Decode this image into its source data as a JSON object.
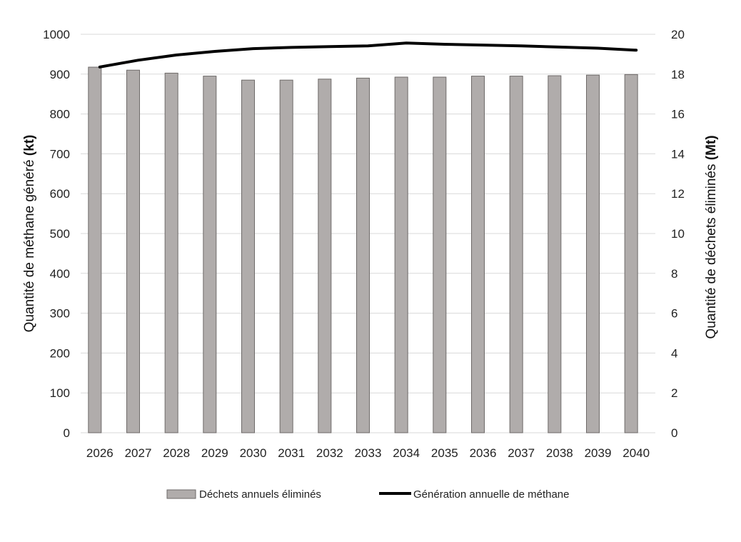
{
  "chart_data": {
    "type": "bar",
    "categories": [
      "2026",
      "2027",
      "2028",
      "2029",
      "2030",
      "2031",
      "2032",
      "2033",
      "2034",
      "2035",
      "2036",
      "2037",
      "2038",
      "2039",
      "2040"
    ],
    "series": [
      {
        "name": "Déchets annuels éliminés",
        "type": "bar",
        "axis": "right",
        "unit": "Mt",
        "values": [
          18.35,
          18.2,
          18.05,
          17.9,
          17.7,
          17.7,
          17.75,
          17.8,
          17.85,
          17.85,
          17.9,
          17.9,
          17.92,
          17.95,
          17.98
        ],
        "color": "#b0acab",
        "stroke": "#6e6a69"
      },
      {
        "name": "Génération annuelle de méthane",
        "type": "line",
        "axis": "left",
        "unit": "kt",
        "values": [
          918,
          935,
          948,
          957,
          964,
          967,
          969,
          971,
          978,
          975,
          973,
          971,
          968,
          965,
          960
        ],
        "color": "#000000"
      }
    ],
    "left_axis": {
      "label_prefix": "Quantité de méthane généré ",
      "label_unit": "(kt)",
      "ticks": [
        "0",
        "100",
        "200",
        "300",
        "400",
        "500",
        "600",
        "700",
        "800",
        "900",
        "1000"
      ],
      "ylim": [
        0,
        1000
      ]
    },
    "right_axis": {
      "label_prefix": "Quantité de déchets éliminés ",
      "label_unit": "(Mt)",
      "ticks": [
        "0",
        "2",
        "4",
        "6",
        "8",
        "10",
        "12",
        "14",
        "16",
        "18",
        "20"
      ],
      "ylim": [
        0,
        20
      ]
    },
    "grid": true,
    "gridline_color": "#d9d9d9",
    "legend_position": "bottom"
  }
}
